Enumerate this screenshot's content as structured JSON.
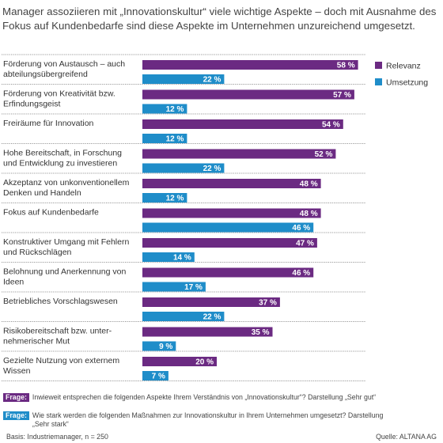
{
  "title": "Manager assoziieren mit „Innovationskultur“ viele wichtige Aspekte – doch mit Ausnahme des Fokus auf Kundenbedarfe sind diese Aspekte im Unternehmen unzureichend umgesetzt.",
  "chart_data": {
    "type": "bar",
    "orientation": "horizontal",
    "categories": [
      [
        "Förderung von Austausch – auch",
        "abteilungsübergreifend"
      ],
      [
        "Förderung von Kreativität bzw.",
        "Erfindungsgeist"
      ],
      [
        "Freiräume für Innovation"
      ],
      [
        "Hohe Bereitschaft, in Forschung",
        "und Entwicklung zu investieren"
      ],
      [
        "Akzeptanz von unkonventionellem",
        "Denken und Handeln"
      ],
      [
        "Fokus auf Kundenbedarfe"
      ],
      [
        "Konstruktiver Umgang mit Fehlern",
        "und Rückschlägen"
      ],
      [
        "Belohnung und Anerkennung von",
        "Ideen"
      ],
      [
        "Betriebliches Vorschlagswesen"
      ],
      [
        "Risikobereitschaft bzw. unter-",
        "nehmerischer Mut"
      ],
      [
        "Gezielte Nutzung von externem",
        "Wissen"
      ]
    ],
    "series": [
      {
        "name": "Relevanz",
        "color": "#6b2a82",
        "values": [
          58,
          57,
          54,
          52,
          48,
          48,
          47,
          46,
          37,
          35,
          20
        ]
      },
      {
        "name": "Umsetzung",
        "color": "#1f8dc9",
        "values": [
          22,
          12,
          12,
          22,
          12,
          46,
          14,
          17,
          22,
          9,
          7
        ]
      }
    ],
    "value_suffix": " %",
    "xlim": [
      0,
      60
    ],
    "legend_position": "top-right"
  },
  "footer": {
    "q1_tag": "Frage:",
    "q1_text": "Inwieweit entsprechen die folgenden Aspekte Ihrem Verständnis von „Innovationskultur“? Darstellung „Sehr gut“",
    "q2_tag": "Frage:",
    "q2_text": "Wie stark werden die folgenden Maßnahmen zur Innovationskultur in Ihrem Unternehmen umgesetzt? Darstellung „Sehr stark“",
    "basis": "Basis: Industriemanager, n = 250",
    "source": "Quelle: ALTANA AG"
  }
}
